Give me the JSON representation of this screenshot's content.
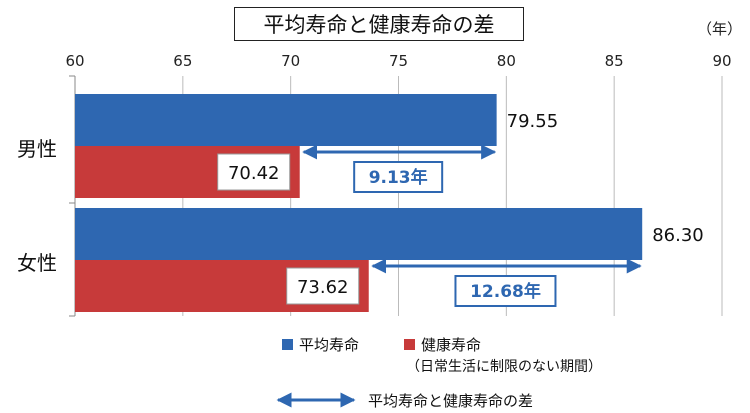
{
  "title": "平均寿命と健康寿命の差",
  "unit": "（年）",
  "colors": {
    "avg": "#2e67b1",
    "healthy": "#c73a3a",
    "gap": "#2e67b1",
    "grid": "#bbbbbb",
    "axis": "#888888"
  },
  "legend": {
    "avg_label": "平均寿命",
    "healthy_label": "健康寿命",
    "healthy_note": "（日常生活に制限のない期間）",
    "gap_label": "平均寿命と健康寿命の差"
  },
  "chart_data": {
    "type": "bar",
    "orientation": "horizontal",
    "title": "平均寿命と健康寿命の差",
    "xlabel": "（年）",
    "xlim": [
      60,
      90
    ],
    "xticks": [
      60,
      65,
      70,
      75,
      80,
      85,
      90
    ],
    "grid": true,
    "legend_position": "bottom",
    "categories": [
      "男性",
      "女性"
    ],
    "series": [
      {
        "name": "平均寿命",
        "values": [
          79.55,
          86.3
        ],
        "labels": [
          "79.55",
          "86.30"
        ]
      },
      {
        "name": "健康寿命",
        "values": [
          70.42,
          73.62
        ],
        "labels": [
          "70.42",
          "73.62"
        ]
      }
    ],
    "annotations": [
      {
        "category": "男性",
        "from": 70.42,
        "to": 79.55,
        "label": "9.13年"
      },
      {
        "category": "女性",
        "from": 73.62,
        "to": 86.3,
        "label": "12.68年"
      }
    ]
  }
}
